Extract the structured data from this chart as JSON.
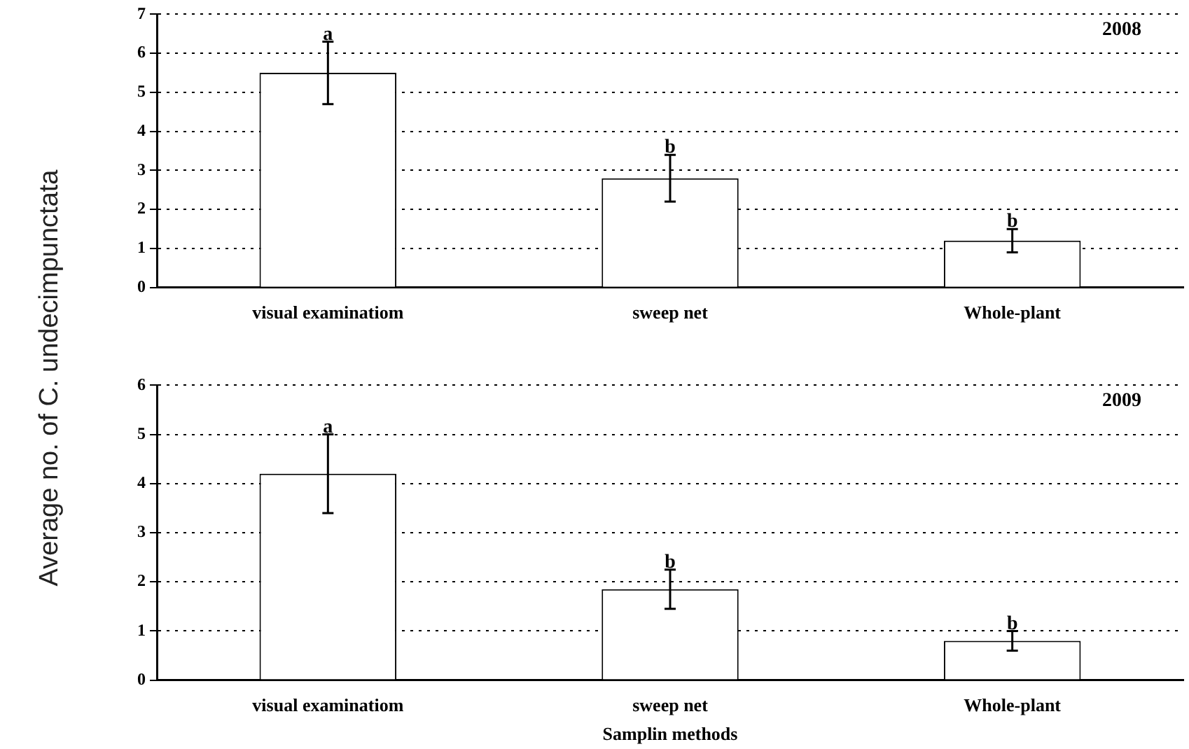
{
  "chart_data": [
    {
      "type": "bar",
      "ylabel": "Average no. of C. undecimpunctata",
      "categories": [
        "visual examinatiom",
        "sweep net",
        "Whole-plant"
      ],
      "values": [
        5.5,
        2.8,
        1.2
      ],
      "errors": [
        0.8,
        0.6,
        0.3
      ],
      "color": "#ffffff",
      "ylim": [
        0,
        7
      ],
      "yticks": [
        0,
        1,
        2,
        3,
        4,
        5,
        6,
        7
      ],
      "grid": "y",
      "annotations": [
        "2008",
        {
          "text": "a",
          "x": "visual examinatiom",
          "y": 6.3
        },
        {
          "text": "b",
          "x": "sweep net",
          "y": 3.4
        },
        {
          "text": "b",
          "x": "Whole-plant",
          "y": 1.5
        }
      ]
    },
    {
      "type": "bar",
      "xlabel": "Samplin methods",
      "categories": [
        "visual examinatiom",
        "sweep net",
        "Whole-plant"
      ],
      "values": [
        4.2,
        1.85,
        0.8
      ],
      "errors": [
        0.8,
        0.4,
        0.2
      ],
      "color": "#ffffff",
      "ylim": [
        0,
        6
      ],
      "yticks": [
        0,
        1,
        2,
        3,
        4,
        5,
        6
      ],
      "grid": "y",
      "annotations": [
        "2009",
        {
          "text": "a",
          "x": "visual examinatiom",
          "y": 5.0
        },
        {
          "text": "b",
          "x": "sweep net",
          "y": 2.25
        },
        {
          "text": "b",
          "x": "Whole-plant",
          "y": 1.0
        }
      ]
    }
  ]
}
